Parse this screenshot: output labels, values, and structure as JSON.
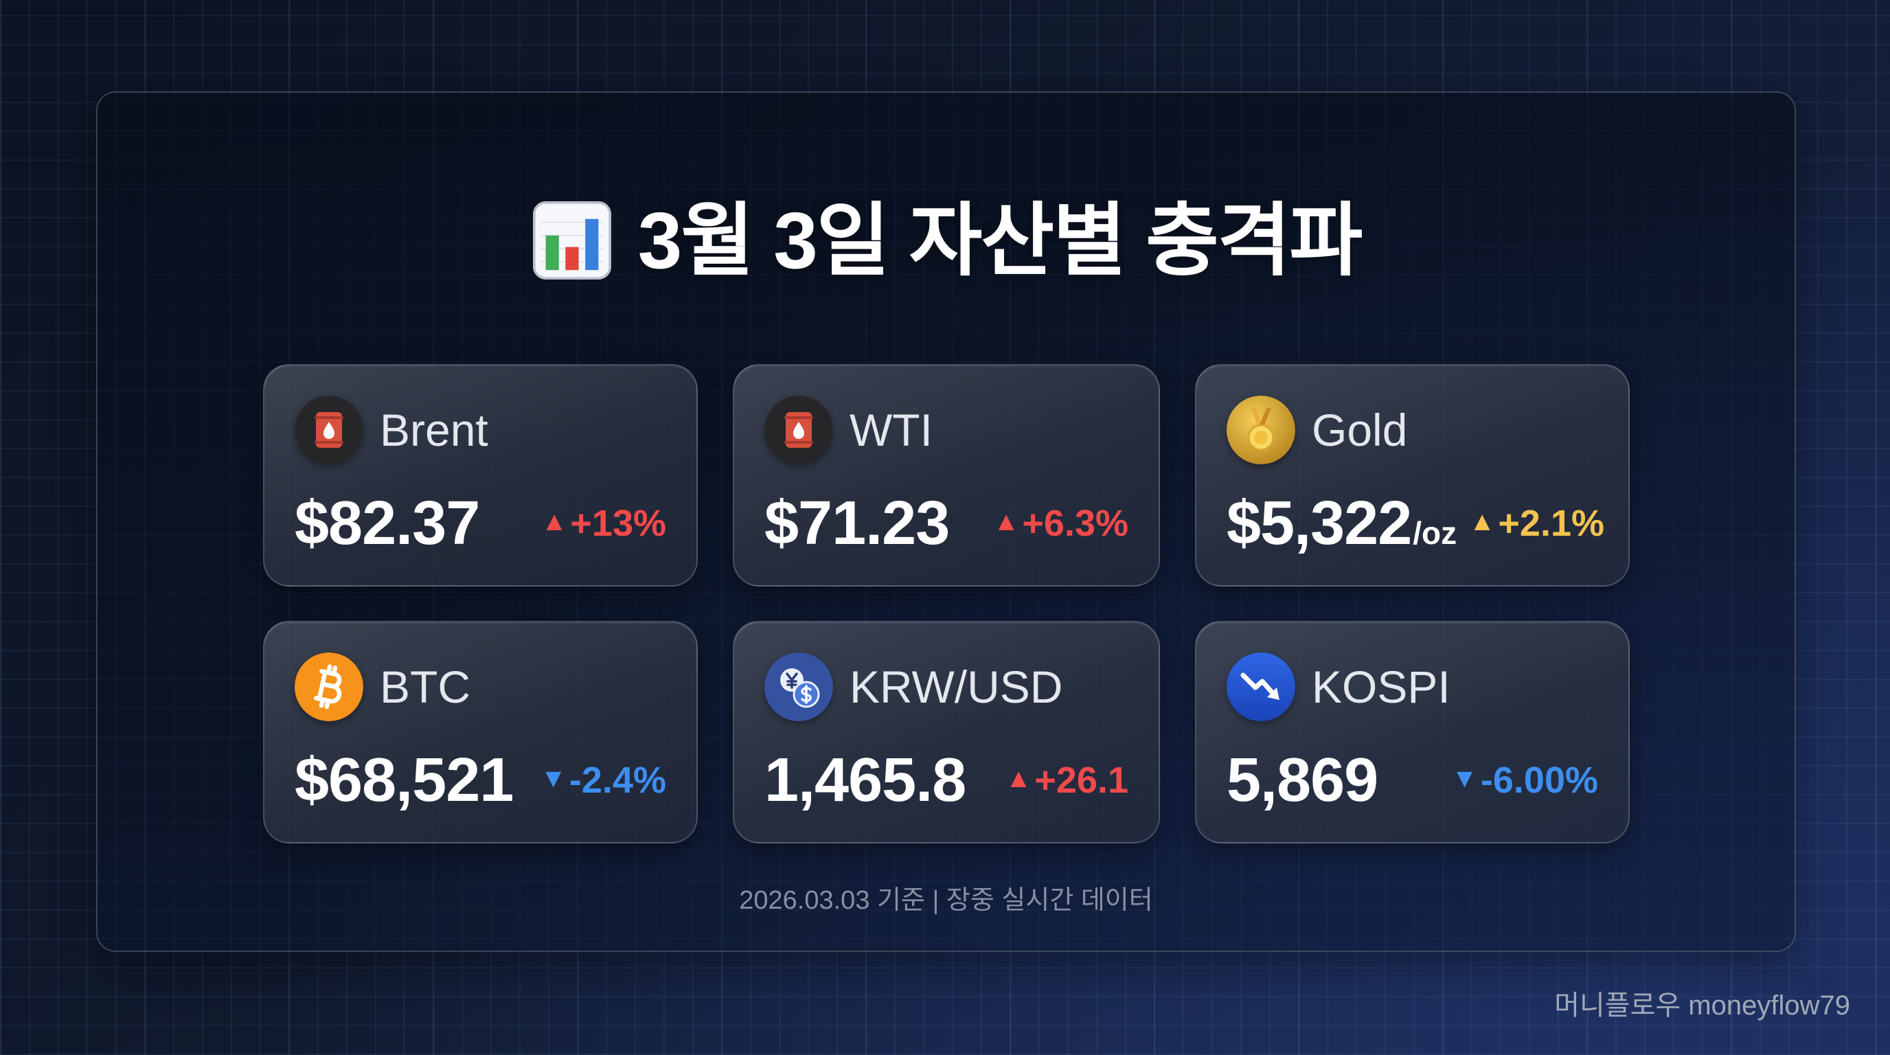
{
  "title": {
    "icon": "bar-chart-icon",
    "text": "3월 3일 자산별 충격파"
  },
  "assets": [
    {
      "name": "Brent",
      "icon": "oil-barrel-icon",
      "value": "$82.37",
      "arrow": "▲",
      "change": "+13%",
      "change_color": "#f04a4a"
    },
    {
      "name": "WTI",
      "icon": "oil-barrel-icon",
      "value": "$71.23",
      "arrow": "▲",
      "change": "+6.3%",
      "change_color": "#f04a4a"
    },
    {
      "name": "Gold",
      "icon": "gold-medal-icon",
      "value": "$5,322",
      "unit": "/oz",
      "arrow": "▲",
      "change": "+2.1%",
      "change_color": "#f2c34e"
    },
    {
      "name": "BTC",
      "icon": "bitcoin-icon",
      "value": "$68,521",
      "arrow": "▼",
      "change": "-2.4%",
      "change_color": "#3d8ef0"
    },
    {
      "name": "KRW/USD",
      "icon": "currency-exchange-icon",
      "value": "1,465.8",
      "arrow": "▲",
      "change": "+26.1",
      "change_color": "#f04a4a"
    },
    {
      "name": "KOSPI",
      "icon": "chart-decreasing-icon",
      "value": "5,869",
      "arrow": "▼",
      "change": "-6.00%",
      "change_color": "#3d8ef0"
    }
  ],
  "footer": {
    "note": "2026.03.03 기준 | 장중 실시간 데이터"
  },
  "watermark": "머니플로우 moneyflow79",
  "colors": {
    "background": "#0f1828",
    "up": "#f04a4a",
    "down": "#3d8ef0",
    "gold_up": "#f2c34e"
  }
}
